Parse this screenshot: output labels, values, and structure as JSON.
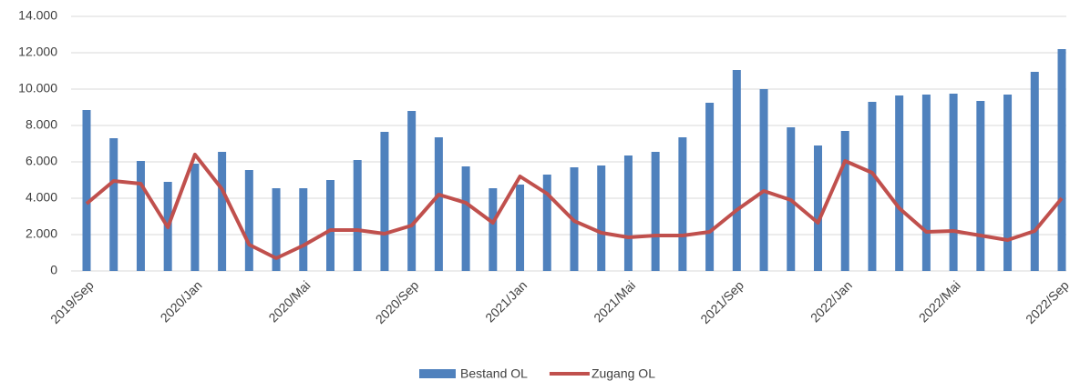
{
  "chart_data": {
    "type": "bar_line",
    "categories": [
      "2019/Sep",
      null,
      null,
      null,
      "2020/Jan",
      null,
      null,
      null,
      "2020/Mai",
      null,
      null,
      null,
      "2020/Sep",
      null,
      null,
      null,
      "2021/Jan",
      null,
      null,
      null,
      "2021/Mai",
      null,
      null,
      null,
      "2021/Sep",
      null,
      null,
      null,
      "2022/Jan",
      null,
      null,
      null,
      "2022/Mai",
      null,
      null,
      null,
      "2022/Sep"
    ],
    "series": [
      {
        "name": "Bestand OL",
        "type": "bar",
        "color": "#4f81bd",
        "values": [
          8850,
          7300,
          6050,
          4900,
          5900,
          6550,
          5550,
          4550,
          4550,
          5000,
          6100,
          7650,
          8800,
          7350,
          5750,
          4550,
          4750,
          5300,
          5700,
          5800,
          6350,
          6550,
          7350,
          9250,
          11050,
          10000,
          7900,
          6900,
          7700,
          9300,
          9650,
          9700,
          9750,
          9350,
          9700,
          10950,
          12200
        ]
      },
      {
        "name": "Zugang OL",
        "type": "line",
        "color": "#c0504d",
        "values": [
          3700,
          4950,
          4800,
          2400,
          6400,
          4500,
          1450,
          700,
          1400,
          2250,
          2250,
          2050,
          2500,
          4200,
          3750,
          2650,
          5200,
          4250,
          2750,
          2100,
          1850,
          1950,
          1950,
          2150,
          3350,
          4400,
          3900,
          2650,
          6050,
          5400,
          3450,
          2150,
          2200,
          1950,
          1700,
          2200,
          4000
        ]
      }
    ],
    "ylim": [
      0,
      14000
    ],
    "yticks": [
      0,
      {
        "value": 2000,
        "label": "2.000"
      },
      {
        "value": 4000,
        "label": "4.000"
      },
      {
        "value": 6000,
        "label": "6.000"
      },
      {
        "value": 8000,
        "label": "8.000"
      },
      {
        "value": 10000,
        "label": "10.000"
      },
      {
        "value": 12000,
        "label": "12.000"
      },
      {
        "value": 14000,
        "label": "14.000"
      }
    ],
    "grid": true,
    "legend": "bottom"
  }
}
